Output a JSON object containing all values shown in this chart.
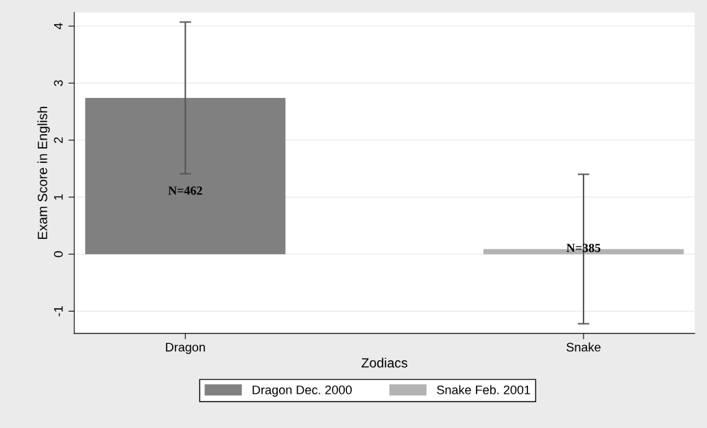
{
  "chart_data": {
    "type": "bar",
    "xlabel": "Zodiacs",
    "ylabel": "Exam Score in English",
    "categories": [
      "Dragon",
      "Snake"
    ],
    "series": [
      {
        "name": "Dragon Dec. 2000",
        "color": "#808080",
        "values": [
          2.74,
          null
        ],
        "errors": [
          1.33,
          null
        ]
      },
      {
        "name": "Snake Feb. 2001",
        "color": "#b3b3b3",
        "values": [
          null,
          0.09
        ],
        "errors": [
          null,
          1.31
        ]
      }
    ],
    "ylim": [
      -1.39,
      4.24
    ],
    "yticks": [
      -1,
      0,
      1,
      2,
      3,
      4
    ],
    "grid": "y",
    "legend": "bottom",
    "annotations": [
      "N=462",
      "N=385"
    ]
  }
}
